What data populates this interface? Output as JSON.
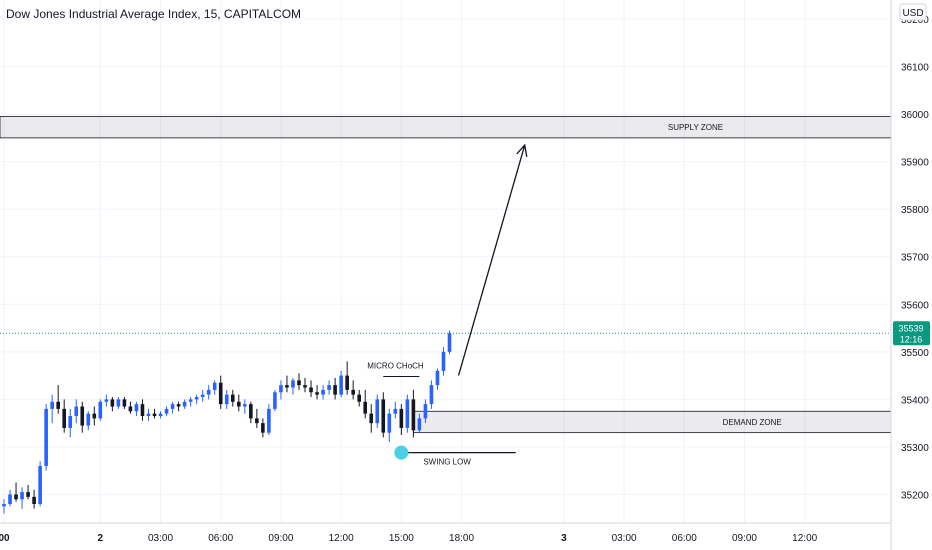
{
  "chart_data": {
    "type": "candlestick",
    "title": "Dow Jones Industrial Average Index, 15, CAPITALCOM",
    "currency": "USD",
    "ylim": [
      35140,
      36240
    ],
    "y_ticks": [
      35200,
      35300,
      35400,
      35500,
      35600,
      35700,
      35800,
      35900,
      36000,
      36100,
      36200
    ],
    "x_ticks": [
      {
        "label": "00",
        "bar": 0
      },
      {
        "label": "2",
        "bar": 16
      },
      {
        "label": "03:00",
        "bar": 26
      },
      {
        "label": "06:00",
        "bar": 36
      },
      {
        "label": "09:00",
        "bar": 46
      },
      {
        "label": "12:00",
        "bar": 56
      },
      {
        "label": "15:00",
        "bar": 66
      },
      {
        "label": "18:00",
        "bar": 76
      },
      {
        "label": "3",
        "bar": 93
      },
      {
        "label": "03:00",
        "bar": 103
      },
      {
        "label": "06:00",
        "bar": 113
      },
      {
        "label": "09:00",
        "bar": 123
      },
      {
        "label": "12:00",
        "bar": 133
      }
    ],
    "total_bars": 148,
    "candles": [
      [
        35175,
        35190,
        35160,
        35180
      ],
      [
        35180,
        35210,
        35175,
        35200
      ],
      [
        35200,
        35225,
        35185,
        35190
      ],
      [
        35190,
        35215,
        35170,
        35205
      ],
      [
        35205,
        35220,
        35190,
        35195
      ],
      [
        35195,
        35210,
        35170,
        35180
      ],
      [
        35180,
        35270,
        35175,
        35260
      ],
      [
        35260,
        35390,
        35250,
        35380
      ],
      [
        35380,
        35410,
        35350,
        35395
      ],
      [
        35395,
        35430,
        35370,
        35380
      ],
      [
        35380,
        35400,
        35330,
        35340
      ],
      [
        35340,
        35380,
        35320,
        35365
      ],
      [
        35365,
        35400,
        35350,
        35385
      ],
      [
        35385,
        35395,
        35330,
        35345
      ],
      [
        35345,
        35375,
        35335,
        35370
      ],
      [
        35370,
        35385,
        35345,
        35360
      ],
      [
        35360,
        35400,
        35355,
        35395
      ],
      [
        35395,
        35410,
        35385,
        35400
      ],
      [
        35400,
        35405,
        35375,
        35385
      ],
      [
        35385,
        35405,
        35380,
        35400
      ],
      [
        35400,
        35405,
        35380,
        35385
      ],
      [
        35385,
        35395,
        35370,
        35375
      ],
      [
        35375,
        35395,
        35365,
        35390
      ],
      [
        35390,
        35400,
        35355,
        35365
      ],
      [
        35365,
        35380,
        35355,
        35370
      ],
      [
        35370,
        35380,
        35360,
        35365
      ],
      [
        35365,
        35375,
        35360,
        35370
      ],
      [
        35370,
        35385,
        35365,
        35380
      ],
      [
        35380,
        35395,
        35370,
        35390
      ],
      [
        35390,
        35395,
        35375,
        35385
      ],
      [
        35385,
        35400,
        35380,
        35395
      ],
      [
        35395,
        35405,
        35385,
        35400
      ],
      [
        35400,
        35410,
        35390,
        35405
      ],
      [
        35405,
        35420,
        35395,
        35410
      ],
      [
        35410,
        35430,
        35400,
        35420
      ],
      [
        35420,
        35440,
        35410,
        35435
      ],
      [
        35435,
        35450,
        35380,
        35390
      ],
      [
        35390,
        35420,
        35380,
        35410
      ],
      [
        35410,
        35420,
        35385,
        35395
      ],
      [
        35395,
        35410,
        35375,
        35385
      ],
      [
        35385,
        35400,
        35370,
        35390
      ],
      [
        35390,
        35395,
        35350,
        35360
      ],
      [
        35360,
        35380,
        35340,
        35350
      ],
      [
        35350,
        35360,
        35320,
        35330
      ],
      [
        35330,
        35390,
        35325,
        35380
      ],
      [
        35380,
        35420,
        35375,
        35415
      ],
      [
        35415,
        35440,
        35400,
        35430
      ],
      [
        35430,
        35450,
        35415,
        35425
      ],
      [
        35425,
        35445,
        35410,
        35440
      ],
      [
        35440,
        35455,
        35420,
        35430
      ],
      [
        35430,
        35445,
        35415,
        35425
      ],
      [
        35425,
        35440,
        35405,
        35415
      ],
      [
        35415,
        35430,
        35400,
        35410
      ],
      [
        35410,
        35430,
        35400,
        35420
      ],
      [
        35420,
        35440,
        35410,
        35430
      ],
      [
        35430,
        35445,
        35400,
        35410
      ],
      [
        35410,
        35460,
        35405,
        35450
      ],
      [
        35450,
        35480,
        35410,
        35420
      ],
      [
        35420,
        35440,
        35400,
        35410
      ],
      [
        35410,
        35420,
        35385,
        35395
      ],
      [
        35395,
        35420,
        35360,
        35370
      ],
      [
        35370,
        35390,
        35330,
        35350
      ],
      [
        35350,
        35410,
        35340,
        35400
      ],
      [
        35400,
        35415,
        35320,
        35330
      ],
      [
        35330,
        35380,
        35310,
        35370
      ],
      [
        35370,
        35395,
        35360,
        35380
      ],
      [
        35380,
        35390,
        35325,
        35340
      ],
      [
        35340,
        35410,
        35330,
        35400
      ],
      [
        35400,
        35420,
        35320,
        35335
      ],
      [
        35335,
        35370,
        35330,
        35360
      ],
      [
        35360,
        35400,
        35350,
        35390
      ],
      [
        35390,
        35440,
        35380,
        35430
      ],
      [
        35430,
        35465,
        35420,
        35460
      ],
      [
        35460,
        35510,
        35450,
        35500
      ],
      [
        35500,
        35545,
        35495,
        35539
      ]
    ],
    "current_price": "35539",
    "countdown": "12:16",
    "annotations": {
      "supply_zone": {
        "label": "SUPPLY ZONE",
        "top": 35995,
        "bottom": 35950,
        "from_bar": -5
      },
      "demand_zone": {
        "label": "DEMAND ZONE",
        "top": 35375,
        "bottom": 35330,
        "from_bar": 68
      },
      "choch": {
        "label": "MICRO CHoCH",
        "level": 35448,
        "from_bar": 63,
        "to_bar": 69
      },
      "swing_low": {
        "label": "SWING LOW",
        "level": 35288,
        "bar": 66,
        "line_to_bar": 85
      },
      "arrow": {
        "from_bar": 75.5,
        "from_value": 35450,
        "to_bar": 86.5,
        "to_value": 35935
      }
    },
    "colors": {
      "up": "#2962ff",
      "down": "#131722",
      "price_line": "#089981",
      "swing_marker": "#4dd0e1"
    }
  }
}
